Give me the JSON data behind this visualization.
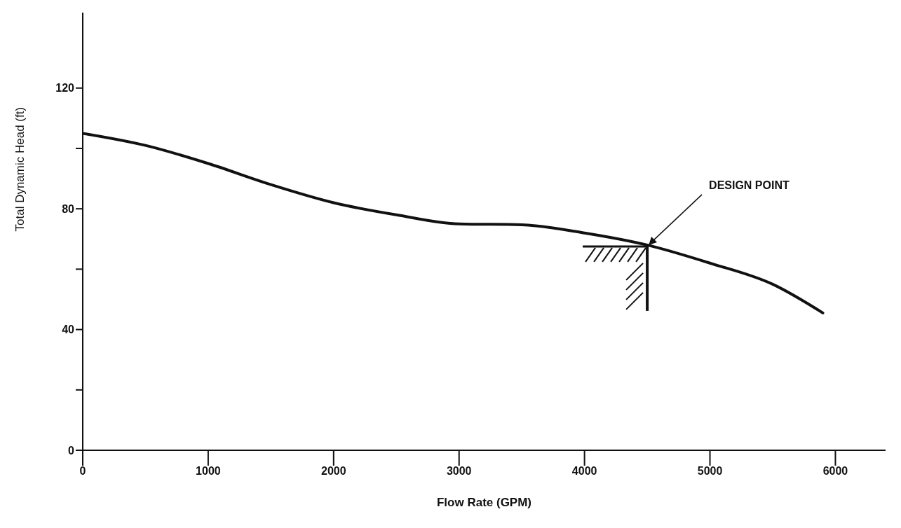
{
  "chart_data": {
    "type": "line",
    "xlabel": "Flow Rate (GPM)",
    "ylabel": "Total Dynamic Head (ft)",
    "x": [
      0,
      500,
      1000,
      1500,
      2000,
      2500,
      3000,
      3500,
      4000,
      4500,
      5000,
      5500,
      5900
    ],
    "series": [
      {
        "color": "#111111",
        "values": [
          105,
          101,
          95,
          88,
          82,
          78,
          75,
          74.7,
          72,
          68,
          62,
          55,
          45.5
        ]
      }
    ],
    "xlim": [
      0,
      6400
    ],
    "xticks": [
      0,
      1000,
      2000,
      3000,
      4000,
      5000,
      6000
    ],
    "ylim": [
      0,
      145
    ],
    "yticks": [
      0,
      {
        "value": 20,
        "label": null
      },
      40,
      {
        "value": 60,
        "label": null
      },
      80,
      {
        "value": 100,
        "label": null
      },
      120
    ],
    "annotations": [
      {
        "text": "DESIGN POINT",
        "x": 4500,
        "y": 68
      }
    ],
    "grid": false,
    "legend": false,
    "marker": "none",
    "line_style": "solid"
  }
}
